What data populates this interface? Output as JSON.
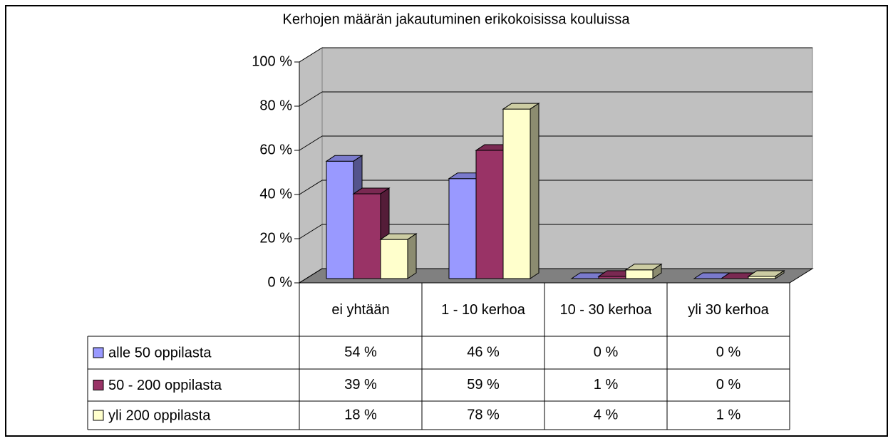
{
  "chart_data": {
    "type": "bar",
    "title": "Kerhojen määrän jakautuminen erikokoisissa kouluissa",
    "categories": [
      "ei yhtään",
      "1 - 10 kerhoa",
      "10 - 30 kerhoa",
      "yli 30 kerhoa"
    ],
    "series": [
      {
        "name": "alle 50 oppilasta",
        "color": "#9999ff",
        "values": [
          54,
          46,
          0,
          0
        ],
        "value_labels": [
          "54 %",
          "46 %",
          "0 %",
          "0 %"
        ]
      },
      {
        "name": "50 - 200 oppilasta",
        "color": "#993366",
        "values": [
          39,
          59,
          1,
          0
        ],
        "value_labels": [
          "39 %",
          "59 %",
          "1 %",
          "0 %"
        ]
      },
      {
        "name": "yli 200 oppilasta",
        "color": "#ffffcc",
        "values": [
          18,
          78,
          4,
          1
        ],
        "value_labels": [
          "18 %",
          "78 %",
          "4 %",
          "1 %"
        ]
      }
    ],
    "ylim": [
      0,
      100
    ],
    "yticks": [
      {
        "value": 0,
        "label": "0 %"
      },
      {
        "value": 20,
        "label": "20 %"
      },
      {
        "value": 40,
        "label": "40 %"
      },
      {
        "value": 60,
        "label": "60 %"
      },
      {
        "value": 80,
        "label": "80 %"
      },
      {
        "value": 100,
        "label": "100 %"
      }
    ],
    "grid": true
  }
}
